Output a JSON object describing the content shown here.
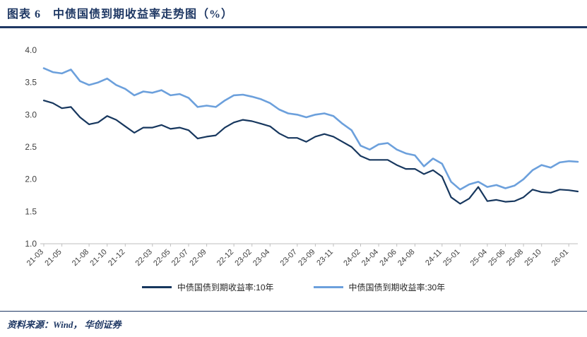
{
  "header": {
    "title": "图表 6　中债国债到期收益率走势图（%）"
  },
  "footer": {
    "source": "资料来源：Wind， 华创证券"
  },
  "colors": {
    "accent": "#1F3864",
    "axis_line": "#BFBFBF",
    "tick_text": "#404040"
  },
  "chart_data": {
    "type": "line",
    "title": "中债国债到期收益率走势图（%）",
    "xlabel": "",
    "ylabel": "",
    "grid": false,
    "legend_position": "bottom",
    "ylim": [
      1.0,
      4.0
    ],
    "yticks": [
      4.0,
      3.5,
      3.0,
      2.5,
      2.0,
      1.5,
      1.0
    ],
    "x": [
      "21-03",
      "21-04",
      "21-05",
      "21-06",
      "21-07",
      "21-08",
      "21-09",
      "21-10",
      "21-11",
      "21-12",
      "22-01",
      "22-02",
      "22-03",
      "22-04",
      "22-05",
      "22-06",
      "22-07",
      "22-08",
      "22-09",
      "22-10",
      "22-11",
      "22-12",
      "23-01",
      "23-02",
      "23-03",
      "23-04",
      "23-05",
      "23-06",
      "23-07",
      "23-08",
      "23-09",
      "23-10",
      "23-11",
      "23-12",
      "24-01",
      "24-02",
      "24-03",
      "24-04",
      "24-05",
      "24-06",
      "24-07",
      "24-08",
      "24-09",
      "24-10",
      "24-11",
      "24-12",
      "25-01",
      "25-02",
      "25-03",
      "25-04",
      "25-05",
      "25-06",
      "25-07",
      "25-08",
      "25-09",
      "25-10",
      "25-11",
      "25-12",
      "26-01",
      "26-02"
    ],
    "xticklabels": [
      "21-03",
      "21-05",
      "21-08",
      "21-10",
      "21-12",
      "22-03",
      "22-05",
      "22-07",
      "22-09",
      "22-12",
      "23-02",
      "23-04",
      "23-07",
      "23-09",
      "23-11",
      "24-02",
      "24-04",
      "24-06",
      "24-08",
      "24-11",
      "25-01",
      "25-04",
      "25-06",
      "25-08",
      "25-10",
      "26-01"
    ],
    "series": [
      {
        "key": "10y",
        "name": "中债国债到期收益率:10年",
        "color": "#17375E",
        "values": [
          3.22,
          3.18,
          3.1,
          3.12,
          2.96,
          2.85,
          2.88,
          2.98,
          2.92,
          2.82,
          2.72,
          2.8,
          2.8,
          2.84,
          2.78,
          2.8,
          2.76,
          2.63,
          2.66,
          2.68,
          2.8,
          2.88,
          2.92,
          2.9,
          2.86,
          2.82,
          2.71,
          2.64,
          2.64,
          2.58,
          2.66,
          2.7,
          2.66,
          2.58,
          2.5,
          2.36,
          2.3,
          2.3,
          2.3,
          2.22,
          2.16,
          2.16,
          2.08,
          2.14,
          2.04,
          1.72,
          1.62,
          1.7,
          1.88,
          1.66,
          1.68,
          1.65,
          1.66,
          1.72,
          1.84,
          1.8,
          1.79,
          1.84,
          1.83,
          1.81
        ]
      },
      {
        "key": "30y",
        "name": "中债国债到期收益率:30年",
        "color": "#6CA0DC",
        "values": [
          3.72,
          3.66,
          3.64,
          3.7,
          3.52,
          3.46,
          3.5,
          3.56,
          3.46,
          3.4,
          3.3,
          3.36,
          3.34,
          3.38,
          3.3,
          3.32,
          3.26,
          3.12,
          3.14,
          3.12,
          3.22,
          3.3,
          3.31,
          3.28,
          3.24,
          3.18,
          3.08,
          3.02,
          3.0,
          2.96,
          3.0,
          3.02,
          2.98,
          2.86,
          2.76,
          2.52,
          2.46,
          2.54,
          2.56,
          2.46,
          2.4,
          2.37,
          2.2,
          2.32,
          2.24,
          1.96,
          1.84,
          1.92,
          1.96,
          1.88,
          1.91,
          1.86,
          1.9,
          2.0,
          2.14,
          2.22,
          2.18,
          2.26,
          2.28,
          2.27
        ]
      }
    ]
  }
}
